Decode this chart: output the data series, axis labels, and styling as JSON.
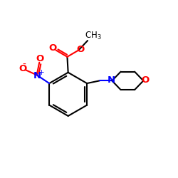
{
  "bg_color": "#ffffff",
  "bond_color": "#000000",
  "atom_colors": {
    "O": "#ff0000",
    "N": "#0000ff"
  },
  "lw": 1.5
}
